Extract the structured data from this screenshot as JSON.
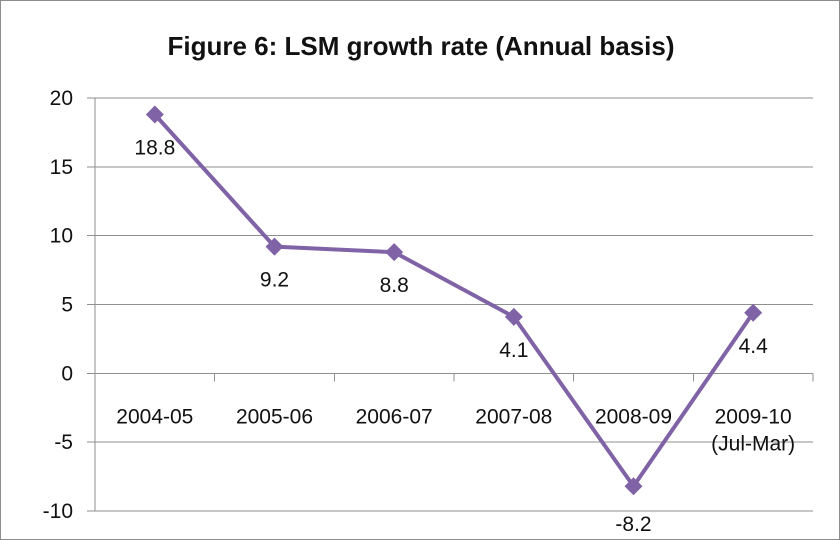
{
  "chart_data": {
    "type": "line",
    "title": "Figure 6: LSM growth rate (Annual basis)",
    "xlabel": "",
    "ylabel": "",
    "categories": [
      [
        "2004-05"
      ],
      [
        "2005-06"
      ],
      [
        "2006-07"
      ],
      [
        "2007-08"
      ],
      [
        "2008-09"
      ],
      [
        "2009-10",
        "(Jul-Mar)"
      ]
    ],
    "values": [
      18.8,
      9.2,
      8.8,
      4.1,
      -8.2,
      4.4
    ],
    "data_labels": [
      "18.8",
      "9.2",
      "8.8",
      "4.1",
      "-8.2",
      "4.4"
    ],
    "ylim": [
      -10,
      20
    ],
    "yticks": [
      20,
      15,
      10,
      5,
      0,
      -5,
      -10
    ],
    "grid": true,
    "legend": "none",
    "marker": "diamond",
    "color": "#7f63a6"
  }
}
